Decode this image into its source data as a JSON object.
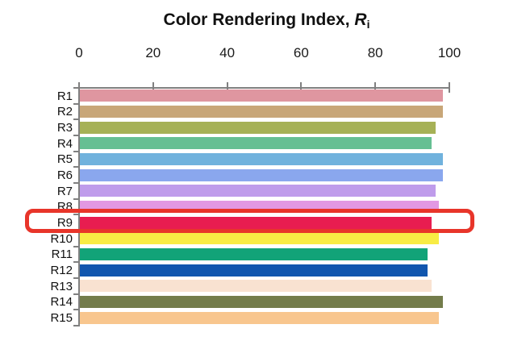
{
  "title": {
    "prefix": "Color Rendering Index, ",
    "symbol": "R",
    "subscript": "i"
  },
  "chart_data": {
    "type": "bar",
    "orientation": "horizontal",
    "title": "Color Rendering Index, Ri",
    "categories": [
      "R1",
      "R2",
      "R3",
      "R4",
      "R5",
      "R6",
      "R7",
      "R8",
      "R9",
      "R10",
      "R11",
      "R12",
      "R13",
      "R14",
      "R15"
    ],
    "values": [
      98,
      98,
      96,
      95,
      98,
      98,
      96,
      97,
      95,
      97,
      94,
      94,
      95,
      98,
      97
    ],
    "bar_colors": [
      "#df96a0",
      "#c8a678",
      "#a6b156",
      "#66bf93",
      "#70b2dd",
      "#8aa7ee",
      "#bf9ceb",
      "#e298e2",
      "#e81d50",
      "#f8ec44",
      "#12a378",
      "#1156ae",
      "#f9e2d1",
      "#737c4b",
      "#f8c68e"
    ],
    "x_ticks": [
      0,
      20,
      40,
      60,
      80,
      100
    ],
    "xlim": [
      0,
      100
    ],
    "xlabel": "",
    "ylabel": "",
    "grid": false,
    "legend": false,
    "axis_color": "#808080",
    "text_color": "#1a1a1a",
    "highlight": {
      "category": "R9",
      "box_color": "#e8352a"
    }
  }
}
